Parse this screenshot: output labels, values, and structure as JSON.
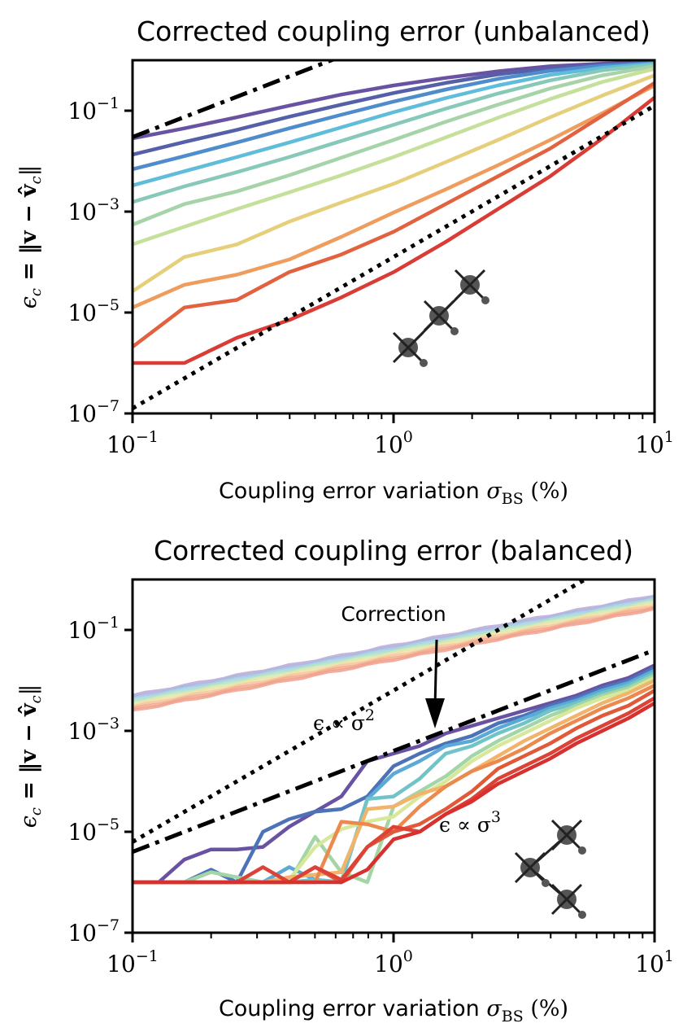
{
  "chart_data": [
    {
      "type": "line",
      "title": "Corrected coupling error (unbalanced)",
      "xlabel": "Coupling error variation σ_BS (%)",
      "ylabel": "ε_c = ‖v − v̂_c‖",
      "xscale": "log",
      "yscale": "log",
      "xlim": [
        0.1,
        10
      ],
      "ylim": [
        1e-07,
        1
      ],
      "xticks": [
        {
          "value": 0.1,
          "base": "10",
          "exp": "−1"
        },
        {
          "value": 1,
          "base": "10",
          "exp": "0"
        },
        {
          "value": 10,
          "base": "10",
          "exp": "1"
        }
      ],
      "yticks": [
        {
          "value": 0.1,
          "base": "10",
          "exp": "−1"
        },
        {
          "value": 0.001,
          "base": "10",
          "exp": "−3"
        },
        {
          "value": 1e-05,
          "base": "10",
          "exp": "−5"
        },
        {
          "value": 1e-07,
          "base": "10",
          "exp": "−7"
        }
      ],
      "grid": false,
      "legend": "none",
      "x": [
        0.1,
        0.158,
        0.251,
        0.398,
        0.631,
        1.0,
        1.585,
        2.512,
        3.981,
        6.31,
        10.0
      ],
      "series_log10": [
        {
          "name": "series-1",
          "color": "#6a52a3",
          "values": [
            -1.55,
            -1.35,
            -1.13,
            -0.9,
            -0.68,
            -0.5,
            -0.35,
            -0.22,
            -0.12,
            -0.07,
            -0.04
          ]
        },
        {
          "name": "series-2",
          "color": "#5560a8",
          "values": [
            -1.87,
            -1.62,
            -1.38,
            -1.12,
            -0.88,
            -0.65,
            -0.45,
            -0.28,
            -0.16,
            -0.09,
            -0.05
          ]
        },
        {
          "name": "series-3",
          "color": "#4f8ccb",
          "values": [
            -2.16,
            -1.9,
            -1.63,
            -1.35,
            -1.08,
            -0.82,
            -0.58,
            -0.37,
            -0.21,
            -0.11,
            -0.06
          ]
        },
        {
          "name": "series-4",
          "color": "#5fbcdb",
          "values": [
            -2.48,
            -2.2,
            -1.92,
            -1.63,
            -1.33,
            -1.03,
            -0.75,
            -0.5,
            -0.29,
            -0.15,
            -0.07
          ]
        },
        {
          "name": "series-5",
          "color": "#87c9b9",
          "values": [
            -2.81,
            -2.5,
            -2.22,
            -1.92,
            -1.6,
            -1.28,
            -0.96,
            -0.66,
            -0.4,
            -0.2,
            -0.09
          ]
        },
        {
          "name": "series-6",
          "color": "#a6d4a8",
          "values": [
            -3.26,
            -2.85,
            -2.6,
            -2.28,
            -1.93,
            -1.58,
            -1.22,
            -0.88,
            -0.56,
            -0.3,
            -0.12
          ]
        },
        {
          "name": "series-7",
          "color": "#c4e09a",
          "values": [
            -3.65,
            -3.3,
            -2.95,
            -2.62,
            -2.28,
            -1.92,
            -1.53,
            -1.14,
            -0.77,
            -0.43,
            -0.17
          ]
        },
        {
          "name": "series-8",
          "color": "#e6cf7a",
          "values": [
            -4.58,
            -3.9,
            -3.65,
            -3.2,
            -2.82,
            -2.45,
            -2.02,
            -1.58,
            -1.13,
            -0.7,
            -0.3
          ]
        },
        {
          "name": "series-9",
          "color": "#ee9d5e",
          "values": [
            -4.9,
            -4.45,
            -4.25,
            -3.95,
            -3.5,
            -3.02,
            -2.56,
            -2.08,
            -1.58,
            -1.05,
            -0.5
          ]
        },
        {
          "name": "series-10",
          "color": "#e2623f",
          "values": [
            -5.68,
            -4.9,
            -4.75,
            -4.2,
            -3.85,
            -3.4,
            -2.85,
            -2.3,
            -1.75,
            -1.1,
            -0.45
          ]
        },
        {
          "name": "series-11",
          "color": "#d93b35",
          "values": [
            -6.0,
            -6.0,
            -5.5,
            -5.15,
            -4.7,
            -4.2,
            -3.6,
            -2.95,
            -2.3,
            -1.55,
            -0.74
          ]
        }
      ],
      "reference_lines": [
        {
          "name": "sigma-squared-ref",
          "style": "dash-dot",
          "coef": 3.0,
          "power": 2
        },
        {
          "name": "sigma-cubed-ref",
          "style": "dotted",
          "coef": 0.000126,
          "power": 3
        }
      ],
      "annotations": []
    },
    {
      "type": "line",
      "title": "Corrected coupling error (balanced)",
      "xlabel": "Coupling error variation σ_BS (%)",
      "ylabel": "ε_c = ‖v − v̂_c‖",
      "xscale": "log",
      "yscale": "log",
      "xlim": [
        0.1,
        10
      ],
      "ylim": [
        1e-07,
        1
      ],
      "xticks": [
        {
          "value": 0.1,
          "base": "10",
          "exp": "−1"
        },
        {
          "value": 1,
          "base": "10",
          "exp": "0"
        },
        {
          "value": 10,
          "base": "10",
          "exp": "1"
        }
      ],
      "yticks": [
        {
          "value": 0.1,
          "base": "10",
          "exp": "−1"
        },
        {
          "value": 0.001,
          "base": "10",
          "exp": "−3"
        },
        {
          "value": 1e-05,
          "base": "10",
          "exp": "−5"
        },
        {
          "value": 1e-07,
          "base": "10",
          "exp": "−7"
        }
      ],
      "grid": false,
      "legend": "none",
      "x": [
        0.1,
        0.126,
        0.158,
        0.2,
        0.251,
        0.316,
        0.398,
        0.501,
        0.631,
        0.794,
        1.0,
        1.259,
        1.585,
        1.995,
        2.512,
        3.162,
        3.981,
        5.012,
        6.31,
        7.943,
        10.0
      ],
      "uncorrected_band_log10": {
        "top": [
          -2.3,
          -0.32
        ],
        "bottom": [
          -2.6,
          -0.58
        ],
        "colors": [
          "#b8a8d6",
          "#a9b8e0",
          "#a6d6e8",
          "#b6e0c6",
          "#d4ebb4",
          "#f2e2a8",
          "#f5c6a0",
          "#f2aa90",
          "#f0a08c"
        ]
      },
      "series_log10": [
        {
          "name": "series-1",
          "color": "#6a52a3",
          "values": [
            -6,
            -6,
            -5.55,
            -5.35,
            -5.35,
            -5.3,
            -4.9,
            -4.6,
            -4.3,
            -3.6,
            -3.45,
            -3.3,
            -3.05,
            -2.9,
            -2.75,
            -2.6,
            -2.45,
            -2.3,
            -2.1,
            -1.95,
            -1.7
          ]
        },
        {
          "name": "series-2",
          "color": "#4c72b8",
          "values": [
            -6,
            -6,
            -6,
            -5.75,
            -6,
            -5.0,
            -4.75,
            -4.6,
            -4.55,
            -4.3,
            -3.7,
            -3.45,
            -3.25,
            -3.1,
            -2.85,
            -2.7,
            -2.5,
            -2.35,
            -2.15,
            -2.0,
            -1.75
          ]
        },
        {
          "name": "series-3",
          "color": "#5aa9d6",
          "values": [
            -6,
            -6,
            -6,
            -6,
            -6,
            -6,
            -5.7,
            -5.95,
            -6,
            -4.35,
            -3.85,
            -3.6,
            -3.3,
            -3.2,
            -2.95,
            -2.75,
            -2.55,
            -2.4,
            -2.2,
            -2.05,
            -1.8
          ]
        },
        {
          "name": "series-4",
          "color": "#70c4c7",
          "values": [
            -6,
            -6,
            -6,
            -6,
            -6,
            -6,
            -6,
            -5.95,
            -6,
            -4.35,
            -4.3,
            -3.95,
            -3.45,
            -3.3,
            -3.05,
            -2.85,
            -2.6,
            -2.45,
            -2.25,
            -2.1,
            -1.85
          ]
        },
        {
          "name": "series-5",
          "color": "#a3d5a6",
          "values": [
            -6,
            -6,
            -6,
            -5.8,
            -5.9,
            -6,
            -6,
            -5.1,
            -5.8,
            -6,
            -4.5,
            -4.2,
            -3.9,
            -3.5,
            -3.2,
            -2.95,
            -2.7,
            -2.5,
            -2.3,
            -2.15,
            -1.9
          ]
        },
        {
          "name": "series-6",
          "color": "#d7e89a",
          "values": [
            -6,
            -6,
            -6,
            -6,
            -6,
            -6,
            -5.95,
            -5.3,
            -4.95,
            -4.8,
            -4.7,
            -4.3,
            -4.0,
            -3.6,
            -3.3,
            -3.05,
            -2.8,
            -2.55,
            -2.35,
            -2.2,
            -1.95
          ]
        },
        {
          "name": "series-7",
          "color": "#f2b36a",
          "values": [
            -6,
            -6,
            -6,
            -6,
            -6,
            -6,
            -5.9,
            -5.85,
            -5.8,
            -4.55,
            -4.5,
            -4.25,
            -4.1,
            -3.8,
            -3.5,
            -3.2,
            -2.95,
            -2.7,
            -2.45,
            -2.25,
            -2.0
          ]
        },
        {
          "name": "series-8",
          "color": "#ec8a4e",
          "values": [
            -6,
            -6,
            -6,
            -6,
            -6,
            -6,
            -6,
            -6,
            -4.8,
            -4.85,
            -5.0,
            -4.5,
            -4.1,
            -3.8,
            -3.6,
            -3.35,
            -3.05,
            -2.8,
            -2.55,
            -2.35,
            -2.1
          ]
        },
        {
          "name": "series-9",
          "color": "#e05a3a",
          "values": [
            -6,
            -6,
            -6,
            -6,
            -6,
            -6,
            -6,
            -5.7,
            -6,
            -5.3,
            -5.0,
            -4.85,
            -4.55,
            -4.2,
            -3.75,
            -3.5,
            -3.25,
            -2.95,
            -2.7,
            -2.5,
            -2.2
          ]
        },
        {
          "name": "series-10",
          "color": "#dc4236",
          "values": [
            -6,
            -6,
            -6,
            -6,
            -6,
            -5.7,
            -6,
            -5.7,
            -5.95,
            -5.3,
            -4.9,
            -5.0,
            -4.65,
            -4.35,
            -3.95,
            -3.7,
            -3.45,
            -3.15,
            -2.9,
            -2.65,
            -2.35
          ]
        },
        {
          "name": "series-11",
          "color": "#d6302f",
          "values": [
            -6,
            -6,
            -6,
            -6,
            -6,
            -6,
            -6,
            -6,
            -6,
            -5.75,
            -5.15,
            -5.0,
            -4.65,
            -4.4,
            -4.05,
            -3.8,
            -3.55,
            -3.25,
            -3.0,
            -2.75,
            -2.45
          ]
        }
      ],
      "reference_lines": [
        {
          "name": "sigma-squared-ref",
          "style": "dash-dot",
          "coef": 0.0004,
          "power": 2
        },
        {
          "name": "sigma-cubed-ref",
          "style": "dotted",
          "coef": 0.0063,
          "power": 3
        }
      ],
      "annotations": [
        {
          "name": "correction-label",
          "text": "Correction"
        },
        {
          "name": "sigma-squared-label",
          "prefix": "ϵ ∝ σ",
          "exp": "2"
        },
        {
          "name": "sigma-cubed-label",
          "prefix": "ϵ ∝ σ",
          "exp": "3"
        }
      ]
    }
  ],
  "labels": {
    "top_title": "Corrected coupling error (unbalanced)",
    "bottom_title": "Corrected coupling error (balanced)",
    "xlabel_text": "Coupling error variation ",
    "xlabel_sigma": "σ",
    "xlabel_sub": "BS",
    "xlabel_pct": " (%)",
    "ylabel_prefix": "ϵ",
    "ylabel_sub": "c",
    "ylabel_rest": " = ‖v − v̂",
    "ylabel_end": "‖",
    "correction": "Correction"
  }
}
